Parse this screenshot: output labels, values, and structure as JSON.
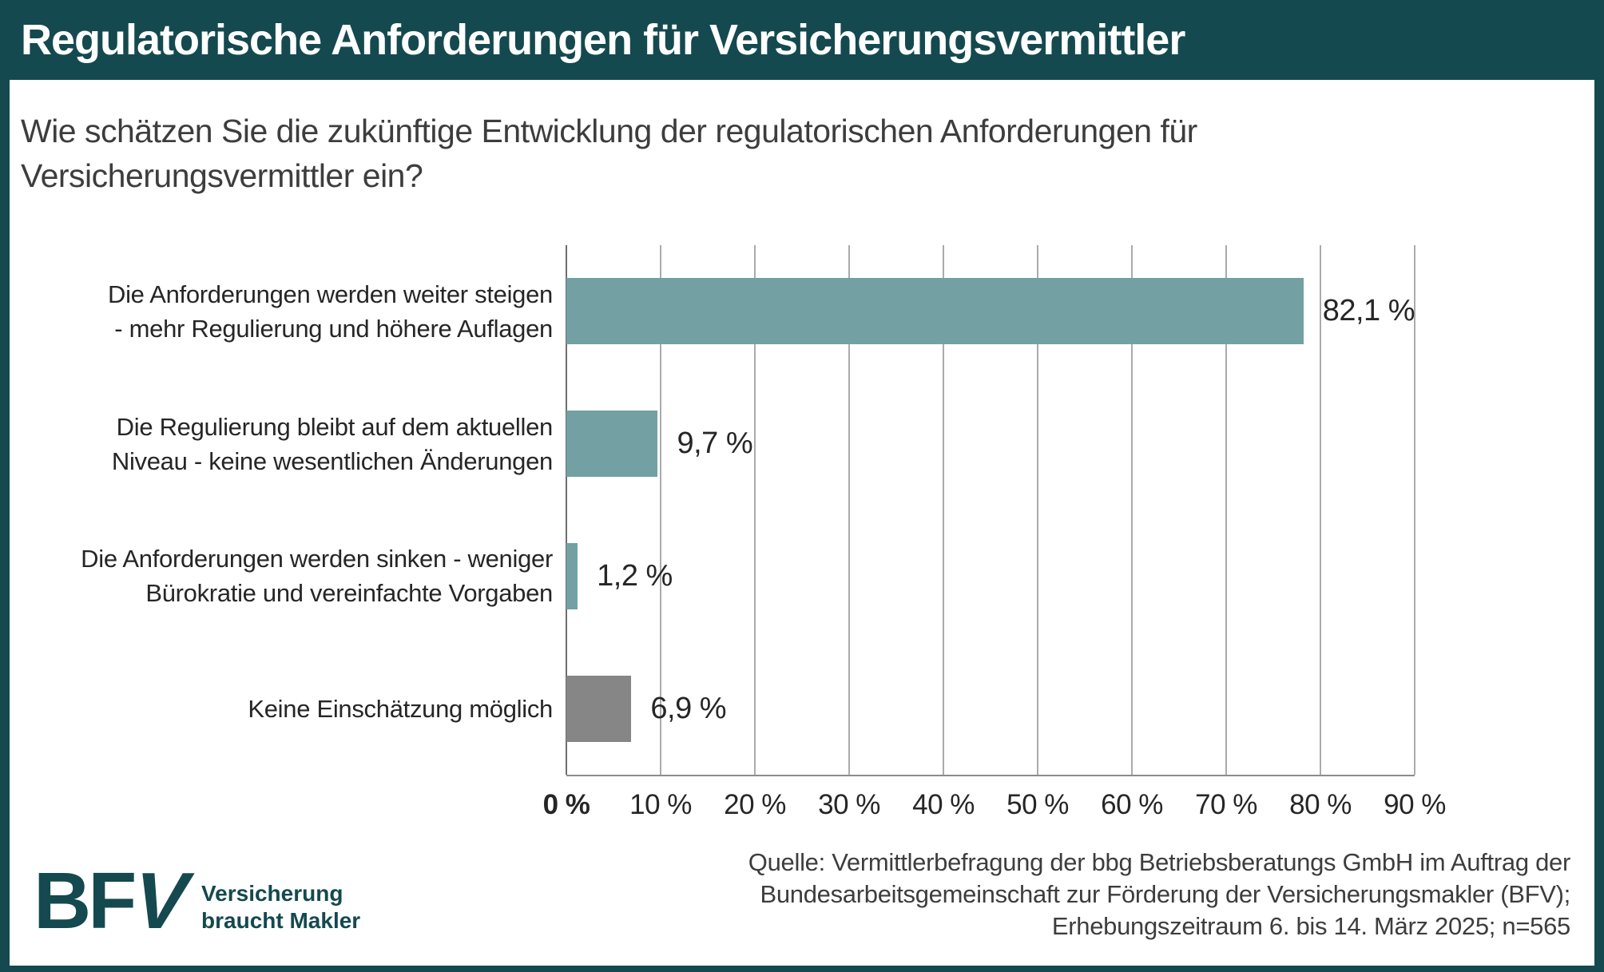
{
  "header": {
    "title": "Regulatorische Anforderungen für Versicherungsvermittler"
  },
  "question": "Wie schätzen Sie die zukünftige Entwicklung der regulatorischen Anforderungen für\nVersicherungsvermittler ein?",
  "chart_data": {
    "type": "bar",
    "orientation": "horizontal",
    "title": "Regulatorische Anforderungen für Versicherungsvermittler",
    "categories": [
      "Die Anforderungen werden weiter steigen\n- mehr Regulierung und höhere Auflagen",
      "Die Regulierung bleibt auf dem aktuellen\nNiveau - keine wesentlichen Änderungen",
      "Die Anforderungen werden sinken - weniger\nBürokratie und vereinfachte Vorgaben",
      "Keine Einschätzung möglich"
    ],
    "values": [
      82.1,
      9.7,
      1.2,
      6.9
    ],
    "value_labels": [
      "82,1 %",
      "9,7 %",
      "1,2 %",
      "6,9 %"
    ],
    "bar_colors": [
      "#73a0a2",
      "#73a0a2",
      "#73a0a2",
      "#868686"
    ],
    "xlim": [
      0,
      90
    ],
    "x_tick_labels": [
      "0 %",
      "10 %",
      "20 %",
      "30 %",
      "40 %",
      "50 %",
      "60 %",
      "70 %",
      "80 %",
      "90 %"
    ],
    "grid": true,
    "legend": false
  },
  "source": "Quelle: Vermittlerbefragung der bbg Betriebsberatungs GmbH im Auftrag der\nBundesarbeitsgemeinschaft zur Förderung der Versicherungsmakler (BFV);\nErhebungszeitraum 6. bis 14. März 2025; n=565",
  "logo": {
    "text_b": "B",
    "text_f": "F",
    "text_v": "V",
    "tagline": "Versicherung\nbraucht Makler"
  },
  "colors": {
    "brand_teal": "#14494f",
    "bar_teal": "#73a0a2",
    "bar_gray": "#868686",
    "grid_gray": "#ababab"
  }
}
